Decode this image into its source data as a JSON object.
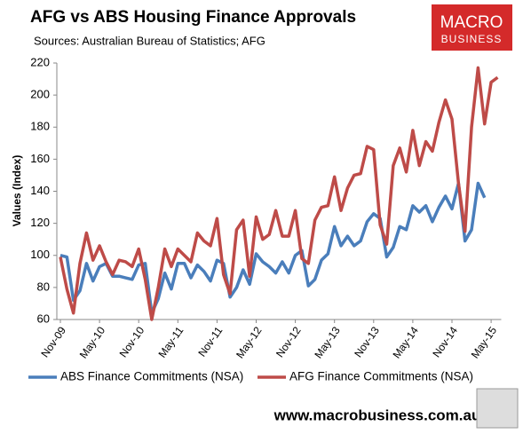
{
  "chart_data": {
    "type": "line",
    "title": "AFG vs ABS Housing Finance Approvals",
    "subtitle": "Sources: Australian Bureau of Statistics; AFG",
    "y_label": "Values (Index)",
    "logo": {
      "line1": "MACRO",
      "line2": "BUSINESS"
    },
    "footer": "www.macrobusiness.com.au",
    "categories": [
      "Nov-09",
      null,
      null,
      null,
      null,
      null,
      "May-10",
      null,
      null,
      null,
      null,
      null,
      "Nov-10",
      null,
      null,
      null,
      null,
      null,
      "May-11",
      null,
      null,
      null,
      null,
      null,
      "Nov-11",
      null,
      null,
      null,
      null,
      null,
      "May-12",
      null,
      null,
      null,
      null,
      null,
      "Nov-12",
      null,
      null,
      null,
      null,
      null,
      "May-13",
      null,
      null,
      null,
      null,
      null,
      "Nov-13",
      null,
      null,
      null,
      null,
      null,
      "May-14",
      null,
      null,
      null,
      null,
      null,
      "Nov-14",
      null,
      null,
      null,
      null,
      null,
      "May-15",
      null
    ],
    "series": [
      {
        "name": "ABS Finance Commitments (NSA)",
        "color": "#4a7ebb",
        "values": [
          100,
          99,
          72,
          78,
          95,
          84,
          93,
          95,
          87,
          87,
          86,
          85,
          94,
          95,
          64,
          73,
          89,
          79,
          95,
          95,
          86,
          94,
          90,
          84,
          97,
          95,
          74,
          80,
          91,
          82,
          101,
          96,
          93,
          89,
          96,
          89,
          100,
          103,
          81,
          85,
          97,
          101,
          118,
          106,
          112,
          106,
          109,
          121,
          126,
          123,
          99,
          105,
          118,
          116,
          131,
          127,
          131,
          121,
          130,
          137,
          129,
          145,
          109,
          116,
          145,
          136,
          null,
          null
        ]
      },
      {
        "name": "AFG Finance Commitments (NSA)",
        "color": "#be4b48",
        "values": [
          99,
          79,
          64,
          95,
          114,
          97,
          106,
          96,
          88,
          97,
          96,
          93,
          104,
          85,
          60,
          80,
          104,
          93,
          104,
          100,
          96,
          114,
          109,
          106,
          123,
          88,
          76,
          116,
          122,
          87,
          124,
          110,
          113,
          128,
          112,
          112,
          128,
          98,
          95,
          122,
          130,
          131,
          149,
          128,
          142,
          150,
          151,
          168,
          166,
          119,
          107,
          156,
          167,
          152,
          178,
          156,
          171,
          165,
          183,
          197,
          185,
          145,
          115,
          180,
          217,
          182,
          208,
          211
        ]
      }
    ],
    "ylim": [
      60,
      220
    ],
    "yticks": [
      60,
      80,
      100,
      120,
      140,
      160,
      180,
      200,
      220
    ],
    "grid": false
  }
}
